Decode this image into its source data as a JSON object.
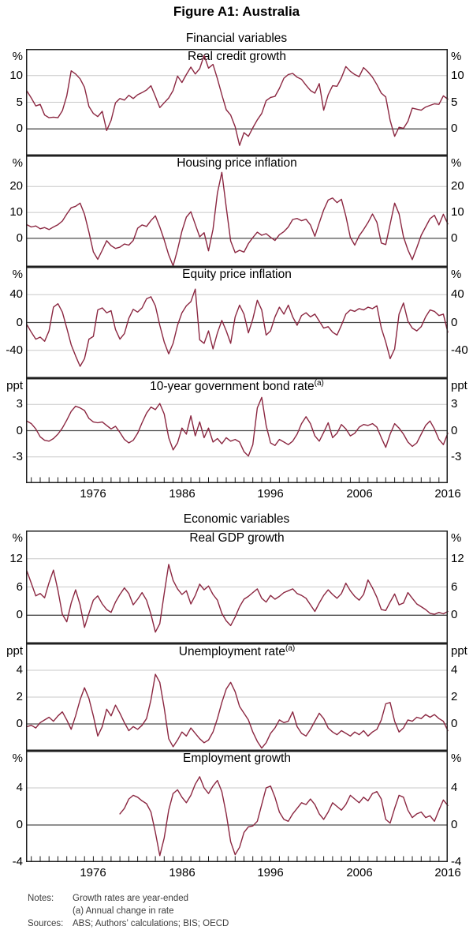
{
  "figure_title": "Figure A1: Australia",
  "style": {
    "line_color": "#8B2741",
    "grid_color": "#C8C8C8",
    "zero_line_color": "#4D4D4D",
    "border_color": "#1F1F1F",
    "text_color": "#000000",
    "notes_text_color": "#3D3D3D"
  },
  "notes": {
    "notes_label": "Notes:",
    "lines": [
      "Growth rates are year-ended",
      "(a) Annual change in rate"
    ],
    "sources_label": "Sources:",
    "sources_text": "ABS; Authors’ calculations; BIS; OECD"
  },
  "chart_data": {
    "type": "line",
    "x_axis": {
      "min": 1968.4,
      "max": 2016,
      "minor_tick_interval_years": 1,
      "tick_label_years": [
        1976,
        1986,
        1996,
        2006,
        2016
      ]
    },
    "groups": [
      {
        "title": "Financial variables",
        "panels": [
          {
            "title": "Real credit growth",
            "unit": "%",
            "ylim": [
              -5,
              15
            ],
            "yticks": [
              {
                "v": 0,
                "t": "0"
              },
              {
                "v": 5,
                "t": "5"
              },
              {
                "v": 10,
                "t": "10"
              }
            ],
            "series": {
              "x_start": 1968.5,
              "x_step": 0.5,
              "values": [
                7.1,
                5.8,
                4.3,
                4.6,
                2.6,
                2.1,
                2.2,
                2.1,
                3.4,
                6.2,
                10.9,
                10.3,
                9.4,
                7.8,
                4.2,
                2.9,
                2.3,
                3.3,
                -0.3,
                1.6,
                4.9,
                5.7,
                5.4,
                6.3,
                5.7,
                6.4,
                6.8,
                7.3,
                8.1,
                6.1,
                4.0,
                4.9,
                5.8,
                7.2,
                9.9,
                8.7,
                10.2,
                11.6,
                10.3,
                11.3,
                13.8,
                11.4,
                12.1,
                9.4,
                6.4,
                3.6,
                2.6,
                0.4,
                -3.1,
                -0.7,
                -1.4,
                0.2,
                1.7,
                2.9,
                5.3,
                5.9,
                6.1,
                7.6,
                9.5,
                10.2,
                10.4,
                9.7,
                9.3,
                8.2,
                7.2,
                6.7,
                8.5,
                3.5,
                6.4,
                8.1,
                8.0,
                9.6,
                11.7,
                10.8,
                10.2,
                9.8,
                11.5,
                10.7,
                9.7,
                8.3,
                6.7,
                6.0,
                1.6,
                -1.4,
                0.3,
                0.1,
                1.4,
                3.9,
                3.7,
                3.5,
                4.1,
                4.4,
                4.7,
                4.6,
                6.2,
                5.6
              ]
            }
          },
          {
            "title": "Housing price inflation",
            "unit": "%",
            "ylim": [
              -11,
              32
            ],
            "yticks": [
              {
                "v": 0,
                "t": "0"
              },
              {
                "v": 10,
                "t": "10"
              },
              {
                "v": 20,
                "t": "20"
              }
            ],
            "series": {
              "x_start": 1968.5,
              "x_step": 0.5,
              "values": [
                5.3,
                4.4,
                4.8,
                3.7,
                4.2,
                3.4,
                4.4,
                5.3,
                6.7,
                9.4,
                11.8,
                12.4,
                13.6,
                9.3,
                2.4,
                -5.2,
                -8.1,
                -4.6,
                -0.9,
                -2.8,
                -3.9,
                -3.4,
                -2.2,
                -2.6,
                -0.8,
                3.9,
                5.2,
                4.6,
                6.9,
                8.7,
                4.4,
                -0.6,
                -6.4,
                -10.6,
                -4.4,
                2.8,
                8.2,
                10.3,
                5.4,
                0.6,
                2.2,
                -4.8,
                3.5,
                17.5,
                25.5,
                12.0,
                -1.0,
                -5.5,
                -4.6,
                -5.3,
                -2.0,
                0.3,
                2.4,
                1.2,
                1.8,
                0.4,
                -0.8,
                1.4,
                2.6,
                4.4,
                7.3,
                7.7,
                6.8,
                7.4,
                5.2,
                0.8,
                6.0,
                11.0,
                14.8,
                15.6,
                13.8,
                15.1,
                8.6,
                0.4,
                -2.6,
                1.0,
                3.4,
                6.1,
                9.4,
                6.2,
                -1.8,
                -2.4,
                5.5,
                13.6,
                9.5,
                0.6,
                -4.4,
                -8.2,
                -3.6,
                1.2,
                4.4,
                7.6,
                8.9,
                5.2,
                9.3,
                5.6
              ]
            }
          },
          {
            "title": "Equity price inflation",
            "unit": "%",
            "ylim": [
              -80,
              80
            ],
            "yticks": [
              {
                "v": -40,
                "t": "-40"
              },
              {
                "v": 0,
                "t": "0"
              },
              {
                "v": 40,
                "t": "40"
              }
            ],
            "series": {
              "x_start": 1968.5,
              "x_step": 0.5,
              "values": [
                -3,
                -14,
                -24,
                -21,
                -27,
                -12,
                22,
                27,
                15,
                -8,
                -32,
                -48,
                -63,
                -52,
                -24,
                -20,
                18,
                21,
                14,
                17,
                -10,
                -24,
                -16,
                6,
                19,
                15,
                21,
                34,
                37,
                24,
                -4,
                -28,
                -45,
                -30,
                -4,
                14,
                24,
                30,
                48,
                -25,
                -30,
                -12,
                -38,
                -15,
                3,
                -12,
                -30,
                8,
                25,
                12,
                -15,
                5,
                32,
                18,
                -18,
                -12,
                8,
                22,
                12,
                25,
                8,
                -4,
                10,
                14,
                8,
                12,
                2,
                -8,
                -6,
                -14,
                -18,
                -4,
                12,
                18,
                16,
                20,
                18,
                22,
                20,
                24,
                -8,
                -28,
                -52,
                -38,
                12,
                28,
                2,
                -8,
                -12,
                -6,
                8,
                18,
                16,
                10,
                12,
                -14
              ]
            }
          },
          {
            "title": "10-year government bond rate",
            "title_sup": "(a)",
            "unit": "ppt",
            "ylim": [
              -6,
              6
            ],
            "yticks": [
              {
                "v": -3,
                "t": "-3"
              },
              {
                "v": 0,
                "t": "0"
              },
              {
                "v": 3,
                "t": "3"
              }
            ],
            "series": {
              "x_start": 1968.5,
              "x_step": 0.5,
              "values": [
                1.1,
                0.8,
                0.2,
                -0.7,
                -1.1,
                -1.2,
                -0.9,
                -0.4,
                0.3,
                1.2,
                2.2,
                2.8,
                2.6,
                2.3,
                1.4,
                1.0,
                0.9,
                1.0,
                0.6,
                0.2,
                0.5,
                -0.2,
                -1.0,
                -1.4,
                -1.1,
                -0.3,
                0.9,
                2.0,
                2.7,
                2.4,
                3.1,
                1.9,
                -0.8,
                -2.2,
                -1.4,
                0.3,
                -0.4,
                1.7,
                -0.6,
                1.0,
                -0.8,
                0.3,
                -1.3,
                -0.9,
                -1.5,
                -0.8,
                -1.2,
                -1.0,
                -1.3,
                -2.4,
                -2.9,
                -1.6,
                2.6,
                3.8,
                0.6,
                -1.4,
                -1.7,
                -1.0,
                -1.3,
                -1.6,
                -1.2,
                -0.4,
                0.8,
                1.6,
                0.8,
                -0.6,
                -1.2,
                -0.2,
                0.9,
                -0.8,
                -0.3,
                0.7,
                0.2,
                -0.6,
                -0.3,
                0.4,
                0.7,
                0.6,
                0.8,
                0.4,
                -0.8,
                -1.9,
                -0.4,
                0.8,
                0.3,
                -0.4,
                -1.3,
                -1.8,
                -1.4,
                -0.4,
                0.6,
                1.1,
                0.2,
                -1.0,
                -1.6,
                -0.3
              ]
            }
          }
        ]
      },
      {
        "title": "Economic variables",
        "panels": [
          {
            "title": "Real GDP growth",
            "unit": "%",
            "ylim": [
              -6,
              18
            ],
            "yticks": [
              {
                "v": 0,
                "t": "0"
              },
              {
                "v": 6,
                "t": "6"
              },
              {
                "v": 12,
                "t": "12"
              }
            ],
            "series": {
              "x_start": 1968.5,
              "x_step": 0.5,
              "values": [
                9.4,
                6.8,
                4.1,
                4.6,
                3.7,
                6.9,
                9.6,
                5.3,
                0.2,
                -1.4,
                2.6,
                5.4,
                2.2,
                -2.6,
                0.4,
                3.2,
                4.1,
                2.4,
                1.2,
                0.6,
                2.8,
                4.4,
                5.8,
                4.6,
                2.2,
                3.4,
                4.8,
                3.2,
                0.2,
                -3.6,
                -1.8,
                4.6,
                10.8,
                7.4,
                5.6,
                4.4,
                5.2,
                2.4,
                4.2,
                6.6,
                5.4,
                6.2,
                4.4,
                3.2,
                0.4,
                -1.2,
                -2.2,
                -0.4,
                1.8,
                3.4,
                4.0,
                4.8,
                5.6,
                3.6,
                2.8,
                4.2,
                3.4,
                4.0,
                4.8,
                5.2,
                5.6,
                4.6,
                4.2,
                3.6,
                2.2,
                0.8,
                2.6,
                4.2,
                5.4,
                4.4,
                3.6,
                4.6,
                6.8,
                5.2,
                4.0,
                3.2,
                4.4,
                7.5,
                5.8,
                3.8,
                1.2,
                1.0,
                2.8,
                4.5,
                2.2,
                2.6,
                4.8,
                3.6,
                2.4,
                1.8,
                1.2,
                0.4,
                0.2,
                0.6,
                0.3,
                0.8
              ]
            }
          },
          {
            "title": "Unemployment rate",
            "title_sup": "(a)",
            "unit": "ppt",
            "ylim": [
              -2,
              6
            ],
            "yticks": [
              {
                "v": 0,
                "t": "0"
              },
              {
                "v": 2,
                "t": "2"
              },
              {
                "v": 4,
                "t": "4"
              }
            ],
            "series": {
              "x_start": 1968.5,
              "x_step": 0.5,
              "values": [
                -0.2,
                -0.1,
                -0.3,
                0.1,
                0.3,
                0.5,
                0.2,
                0.6,
                0.9,
                0.3,
                -0.4,
                0.6,
                1.8,
                2.7,
                1.9,
                0.6,
                -0.9,
                -0.2,
                1.1,
                0.6,
                1.4,
                0.8,
                0.1,
                -0.5,
                -0.2,
                -0.4,
                -0.1,
                0.4,
                1.8,
                3.7,
                3.1,
                1.2,
                -1.1,
                -1.7,
                -1.2,
                -0.6,
                -0.9,
                -0.3,
                -0.7,
                -1.1,
                -1.4,
                -1.2,
                -0.6,
                0.4,
                1.6,
                2.6,
                3.1,
                2.4,
                1.3,
                0.8,
                0.3,
                -0.6,
                -1.3,
                -1.8,
                -1.4,
                -0.7,
                -0.3,
                0.3,
                0.1,
                0.2,
                0.9,
                -0.2,
                -0.7,
                -0.9,
                -0.4,
                0.2,
                0.8,
                0.4,
                -0.3,
                -0.6,
                -0.8,
                -0.5,
                -0.7,
                -0.9,
                -0.6,
                -0.8,
                -0.5,
                -0.9,
                -0.6,
                -0.4,
                0.3,
                1.5,
                1.6,
                0.2,
                -0.6,
                -0.3,
                0.3,
                0.2,
                0.5,
                0.4,
                0.7,
                0.5,
                0.7,
                0.4,
                0.2,
                -0.5
              ]
            }
          },
          {
            "title": "Employment growth",
            "unit": "%",
            "ylim": [
              -4,
              8
            ],
            "yticks": [
              {
                "v": -4,
                "t": "-4"
              },
              {
                "v": 0,
                "t": "0"
              },
              {
                "v": 4,
                "t": "4"
              }
            ],
            "series": {
              "x_start": 1979.0,
              "x_step": 0.5,
              "values": [
                1.2,
                1.8,
                2.8,
                3.2,
                3.0,
                2.6,
                2.3,
                1.4,
                -0.8,
                -3.3,
                -1.4,
                1.6,
                3.4,
                3.8,
                3.0,
                2.4,
                3.2,
                4.4,
                5.2,
                4.0,
                3.4,
                4.2,
                4.8,
                3.6,
                1.2,
                -1.8,
                -3.2,
                -2.4,
                -0.8,
                -0.2,
                -0.1,
                0.4,
                2.2,
                4.0,
                4.2,
                3.0,
                1.4,
                0.6,
                0.4,
                1.2,
                1.8,
                2.4,
                2.2,
                2.8,
                2.2,
                1.2,
                0.6,
                1.4,
                2.4,
                2.0,
                1.6,
                2.2,
                3.2,
                2.8,
                2.4,
                3.0,
                2.6,
                3.4,
                3.6,
                2.8,
                0.6,
                0.2,
                1.8,
                3.2,
                3.0,
                1.6,
                0.8,
                1.2,
                1.4,
                0.8,
                1.0,
                0.4,
                1.6,
                2.7,
                2.1
              ]
            }
          }
        ]
      }
    ]
  }
}
